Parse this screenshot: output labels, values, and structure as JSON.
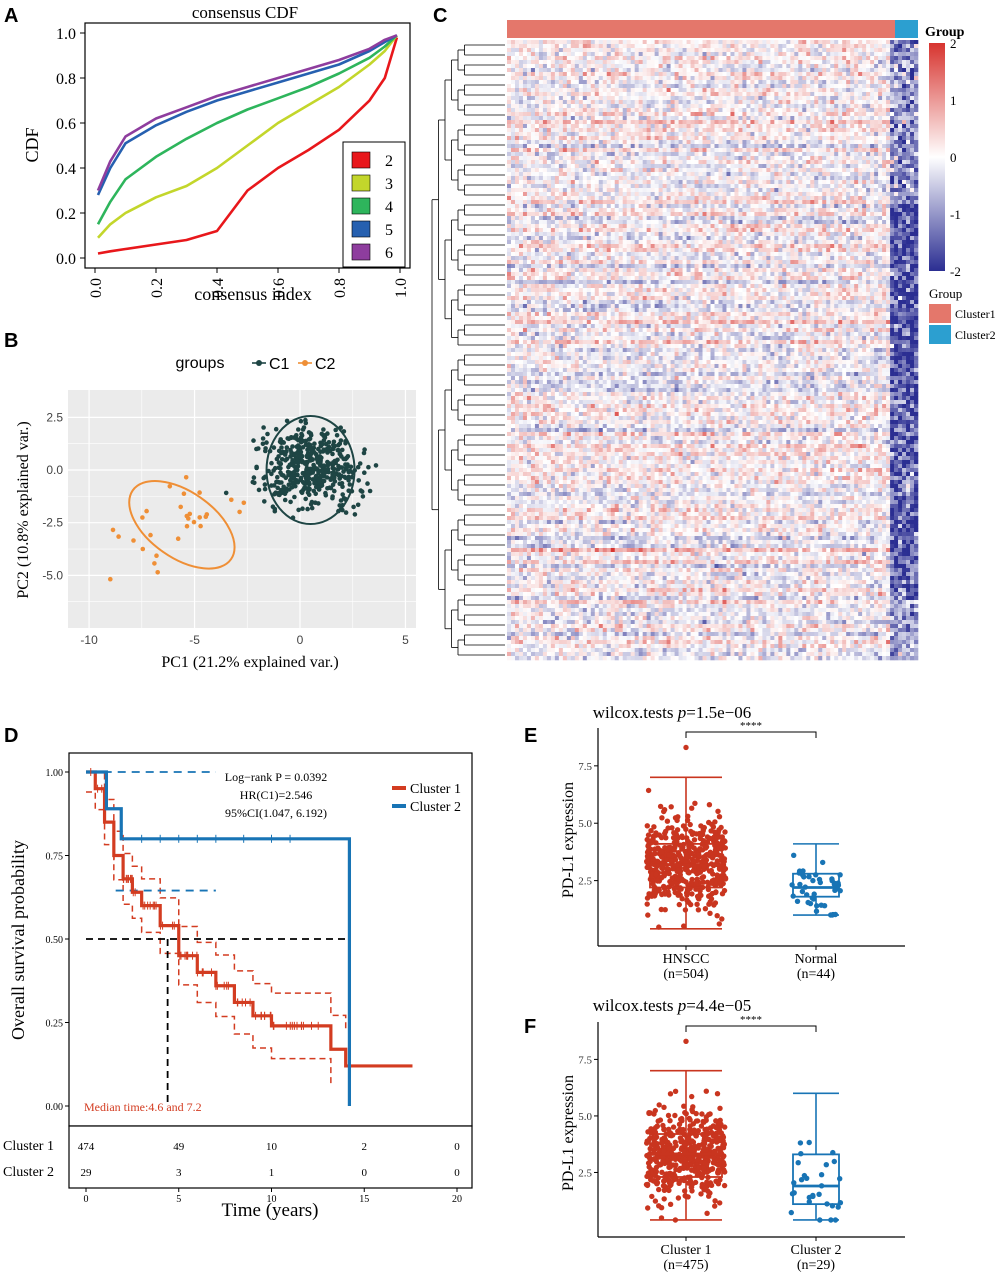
{
  "chart_data": [
    {
      "panel": "A",
      "type": "line",
      "title": "consensus CDF",
      "xlabel": "consensus index",
      "ylabel": "CDF",
      "xlim": [
        0,
        1
      ],
      "ylim": [
        0,
        1
      ],
      "xticks": [
        "0.0",
        "0.2",
        "0.4",
        "0.6",
        "0.8",
        "1.0"
      ],
      "yticks": [
        "0.0",
        "0.2",
        "0.4",
        "0.6",
        "0.8",
        "1.0"
      ],
      "legend_position": "bottom-right",
      "x": [
        0.01,
        0.05,
        0.1,
        0.2,
        0.3,
        0.4,
        0.5,
        0.6,
        0.7,
        0.8,
        0.9,
        0.95,
        0.99
      ],
      "series": [
        {
          "name": "2",
          "color": "#e8171b",
          "values": [
            0.02,
            0.03,
            0.04,
            0.06,
            0.08,
            0.12,
            0.3,
            0.4,
            0.48,
            0.57,
            0.7,
            0.8,
            0.98
          ]
        },
        {
          "name": "3",
          "color": "#c3d62b",
          "values": [
            0.09,
            0.15,
            0.2,
            0.27,
            0.32,
            0.4,
            0.5,
            0.6,
            0.68,
            0.76,
            0.86,
            0.92,
            0.99
          ]
        },
        {
          "name": "4",
          "color": "#2eb55c",
          "values": [
            0.15,
            0.25,
            0.35,
            0.45,
            0.53,
            0.6,
            0.66,
            0.71,
            0.76,
            0.82,
            0.89,
            0.94,
            0.99
          ]
        },
        {
          "name": "5",
          "color": "#2660b0",
          "values": [
            0.28,
            0.4,
            0.51,
            0.59,
            0.65,
            0.7,
            0.74,
            0.78,
            0.82,
            0.86,
            0.92,
            0.96,
            0.99
          ]
        },
        {
          "name": "6",
          "color": "#8e3d9e",
          "values": [
            0.3,
            0.43,
            0.54,
            0.62,
            0.67,
            0.72,
            0.76,
            0.8,
            0.84,
            0.88,
            0.93,
            0.97,
            0.99
          ]
        }
      ]
    },
    {
      "panel": "B",
      "type": "scatter",
      "legend_title": "groups",
      "xlabel": "PC1 (21.2% explained var.)",
      "ylabel": "PC2 (10.8% explained var.)",
      "xlim": [
        -11,
        5.5
      ],
      "ylim": [
        -7.5,
        3.8
      ],
      "xticks": [
        "-10",
        "-5",
        "0",
        "5"
      ],
      "yticks": [
        "2.5",
        "0.0",
        "-2.5",
        "-5.0"
      ],
      "series": [
        {
          "name": "C1",
          "color": "#1e4544",
          "center": [
            0.5,
            0.0
          ],
          "n_points": 475
        },
        {
          "name": "C2",
          "color": "#ef8f36",
          "center": [
            -6.0,
            -2.5
          ],
          "n_points": 29
        }
      ]
    },
    {
      "panel": "C",
      "type": "heatmap",
      "legend_title": "Group",
      "annotation_title": "Group",
      "color_scale": {
        "min": -2,
        "max": 2,
        "ticks": [
          "2",
          "1",
          "0",
          "-1",
          "-2"
        ],
        "low": "#2b2e92",
        "mid": "#ffffff",
        "high": "#d7342f"
      },
      "groups": [
        {
          "name": "Cluster1",
          "color": "#e4776b"
        },
        {
          "name": "Cluster2",
          "color": "#2c9fd0"
        }
      ]
    },
    {
      "panel": "D",
      "type": "line",
      "subtype": "kaplan-meier",
      "xlabel": "Time (years)",
      "ylabel": "Overall survival probability",
      "xlim": [
        0,
        20
      ],
      "ylim": [
        0,
        1
      ],
      "xticks": [
        "0",
        "5",
        "10",
        "15",
        "20"
      ],
      "yticks": [
        "0.00",
        "0.25",
        "0.50",
        "0.75",
        "1.00"
      ],
      "annotations": [
        "Log−rank P = 0.0392",
        "HR(C1)=2.546",
        "95%CI(1.047, 6.192)"
      ],
      "median_text": "Median time:4.6 and 7.2",
      "series": [
        {
          "name": "Cluster 1",
          "color": "#d33c21",
          "x": [
            0,
            0.5,
            1,
            1.5,
            2,
            2.5,
            3,
            4,
            5,
            6,
            7,
            8,
            9,
            10,
            11,
            12,
            13,
            13.2,
            14,
            14.5,
            17.6
          ],
          "values": [
            1.0,
            0.95,
            0.85,
            0.75,
            0.68,
            0.64,
            0.6,
            0.54,
            0.45,
            0.4,
            0.36,
            0.31,
            0.27,
            0.24,
            0.24,
            0.24,
            0.24,
            0.17,
            0.12,
            0.12,
            0.12
          ]
        },
        {
          "name": "Cluster 2",
          "color": "#1874b5",
          "x": [
            0,
            0.6,
            1.1,
            1.9,
            14.2,
            14.2
          ],
          "values": [
            1.0,
            1.0,
            0.89,
            0.8,
            0.8,
            0.0
          ]
        }
      ],
      "risk_table": {
        "rows": [
          {
            "name": "Cluster 1",
            "values": [
              "474",
              "49",
              "10",
              "2",
              "0"
            ]
          },
          {
            "name": "Cluster 2",
            "values": [
              "29",
              "3",
              "1",
              "0",
              "0"
            ]
          }
        ]
      }
    },
    {
      "panel": "E",
      "type": "box",
      "title_prefix": "wilcox.tests ",
      "title_p": "p",
      "title_value": "=1.5e−06",
      "ylabel": "PD-L1 expression",
      "yticks": [
        "2.5",
        "5.0",
        "7.5"
      ],
      "ylim": [
        0,
        8.8
      ],
      "significance": "****",
      "groups": [
        {
          "name": "HNSCC",
          "n_label": "(n=504)",
          "color": "#c9351f",
          "min": 0.4,
          "q1": 2.2,
          "median": 3.2,
          "q3": 4.1,
          "max": 7.0,
          "outliers": [
            8.3
          ]
        },
        {
          "name": "Normal",
          "n_label": "(n=44)",
          "color": "#1874b5",
          "min": 1.0,
          "q1": 1.8,
          "median": 2.2,
          "q3": 2.8,
          "max": 4.1,
          "outliers": []
        }
      ]
    },
    {
      "panel": "F",
      "type": "box",
      "title_prefix": "wilcox.tests ",
      "title_p": "p",
      "title_value": "=4.4e−05",
      "ylabel": "PD-L1 expression",
      "yticks": [
        "2.5",
        "5.0",
        "7.5"
      ],
      "ylim": [
        0,
        8.8
      ],
      "significance": "****",
      "groups": [
        {
          "name": "Cluster 1",
          "n_label": "(n=475)",
          "color": "#c9351f",
          "min": 0.4,
          "q1": 2.3,
          "median": 3.3,
          "q3": 4.2,
          "max": 7.0,
          "outliers": [
            8.3
          ]
        },
        {
          "name": "Cluster 2",
          "n_label": "(n=29)",
          "color": "#1874b5",
          "min": 0.4,
          "q1": 1.1,
          "median": 1.9,
          "q3": 3.3,
          "max": 6.0,
          "outliers": []
        }
      ]
    }
  ]
}
